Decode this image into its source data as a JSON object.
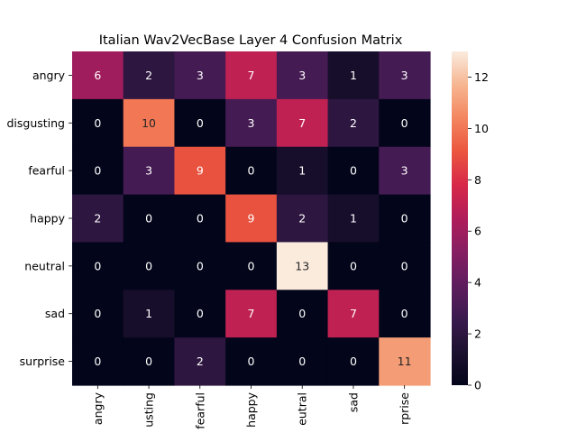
{
  "chart_data": {
    "type": "heatmap",
    "title": "Italian Wav2VecBase Layer 4 Confusion Matrix",
    "xlabel": "",
    "ylabel": "",
    "row_labels": [
      "angry",
      "disgusting",
      "fearful",
      "happy",
      "neutral",
      "sad",
      "surprise"
    ],
    "col_labels_shown": [
      "angry",
      "usting",
      "fearful",
      "happy",
      "eutral",
      "sad",
      "rprise"
    ],
    "values": [
      [
        6,
        2,
        3,
        7,
        3,
        1,
        3
      ],
      [
        0,
        10,
        0,
        3,
        7,
        2,
        0
      ],
      [
        0,
        3,
        9,
        0,
        1,
        0,
        3
      ],
      [
        2,
        0,
        0,
        9,
        2,
        1,
        0
      ],
      [
        0,
        0,
        0,
        0,
        13,
        0,
        0
      ],
      [
        0,
        1,
        0,
        7,
        0,
        7,
        0
      ],
      [
        0,
        0,
        2,
        0,
        0,
        0,
        11
      ]
    ],
    "vmin": 0,
    "vmax": 13,
    "colormap": "rocket",
    "colorbar_ticks": [
      0,
      2,
      4,
      6,
      8,
      10,
      12
    ],
    "annotate": true,
    "grid": false,
    "colorbar_position": "right"
  }
}
